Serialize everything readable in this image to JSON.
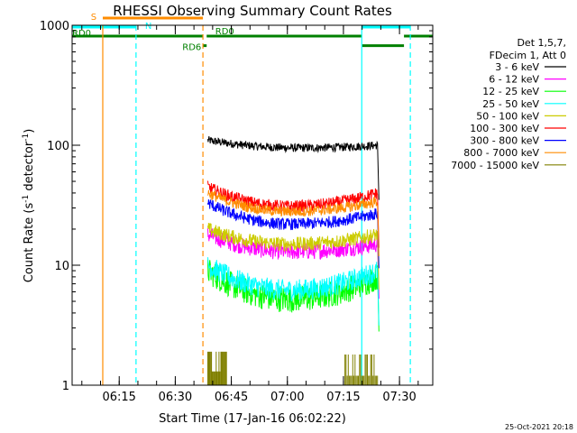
{
  "chart_data": {
    "type": "line",
    "title": "RHESSI Observing Summary Count Rates",
    "xlabel": "Start Time (17-Jan-16 06:02:22)",
    "ylabel_main": "Count Rate (s",
    "ylabel_sup1": "-1",
    "ylabel_mid": " detector",
    "ylabel_sup2": "-1",
    "ylabel_end": ")",
    "y_scale": "log",
    "ylim": [
      1,
      1000
    ],
    "xlim_minutes": [
      0,
      96.5
    ],
    "y_ticks": [
      {
        "value": 1,
        "label": "1"
      },
      {
        "value": 10,
        "label": "10"
      },
      {
        "value": 100,
        "label": "100"
      },
      {
        "value": 1000,
        "label": "1000"
      }
    ],
    "x_ticks": [
      {
        "minute": 12.6,
        "label": "06:15"
      },
      {
        "minute": 27.6,
        "label": "06:30"
      },
      {
        "minute": 42.6,
        "label": "06:45"
      },
      {
        "minute": 57.6,
        "label": "07:00"
      },
      {
        "minute": 72.6,
        "label": "07:15"
      },
      {
        "minute": 87.6,
        "label": "07:30"
      }
    ],
    "legend_header": [
      "Det 1,5,7,",
      "FDecim 1, Att 0"
    ],
    "series": [
      {
        "name": "3 - 6 keV",
        "color": "#000000",
        "start": [
          35,
          110
        ],
        "end": [
          80,
          100
        ],
        "mid": [
          61,
          95
        ],
        "noise": 0.035
      },
      {
        "name": "6 - 12 keV",
        "color": "#ff00ff",
        "start": [
          35,
          18
        ],
        "end": [
          80,
          15
        ],
        "mid": [
          58,
          13
        ],
        "noise": 0.07
      },
      {
        "name": "12 - 25 keV",
        "color": "#00ff00",
        "start": [
          35,
          9
        ],
        "end": [
          80,
          8
        ],
        "mid": [
          58,
          5.2
        ],
        "noise": 0.11
      },
      {
        "name": "25 - 50 keV",
        "color": "#00ffff",
        "start": [
          35,
          10
        ],
        "end": [
          80,
          9
        ],
        "mid": [
          58,
          6.2
        ],
        "noise": 0.09
      },
      {
        "name": "50 - 100 keV",
        "color": "#cccc00",
        "start": [
          35,
          20
        ],
        "end": [
          80,
          18
        ],
        "mid": [
          58,
          15
        ],
        "noise": 0.06
      },
      {
        "name": "100 - 300 keV",
        "color": "#ff0000",
        "start": [
          35,
          45
        ],
        "end": [
          80,
          40
        ],
        "mid": [
          58,
          31
        ],
        "noise": 0.05
      },
      {
        "name": "300 - 800 keV",
        "color": "#0000ff",
        "start": [
          35,
          33
        ],
        "end": [
          80,
          27
        ],
        "mid": [
          58,
          22
        ],
        "noise": 0.05
      },
      {
        "name": "800 - 7000 keV",
        "color": "#ff8c00",
        "start": [
          35,
          40
        ],
        "end": [
          80,
          34
        ],
        "mid": [
          58,
          28
        ],
        "noise": 0.045
      },
      {
        "name": "7000 - 15000 keV",
        "color": "#808000",
        "start": [
          35,
          1.9
        ],
        "end": [
          80,
          1.0
        ],
        "mid": [
          58,
          1.0
        ],
        "noise": 0
      }
    ],
    "data_span_minutes": [
      36.3,
      81.7
    ],
    "vertical_lines": [
      {
        "minute": 8.2,
        "color": "#ff8c00",
        "style": "solid"
      },
      {
        "minute": 17.1,
        "color": "#00ffff",
        "style": "dashed"
      },
      {
        "minute": 35.0,
        "color": "#ff8c00",
        "style": "dashed"
      },
      {
        "minute": 77.5,
        "color": "#00ffff",
        "style": "solid"
      },
      {
        "minute": 90.5,
        "color": "#00ffff",
        "style": "dashed"
      }
    ],
    "flag_bars": [
      {
        "label": "S",
        "color": "#ff8c00",
        "x0": 8.2,
        "x1": 35.0,
        "y": 1.56,
        "label_at": 5.0,
        "label_dy": 2
      },
      {
        "label": "N",
        "color": "#00ffff",
        "x0": 0,
        "x1": 17.1,
        "y": 1.485,
        "label_at": 19.5,
        "label_dy": 2
      },
      {
        "label": "",
        "color": "#00ffff",
        "x0": 77.5,
        "x1": 90.5,
        "y": 1.485,
        "label_at": 0,
        "label_dy": 0
      },
      {
        "label": "RD0",
        "color": "#008000",
        "x0": 0,
        "x1": 35.0,
        "y": 1.41,
        "label_at": 0,
        "label_dy": 0
      },
      {
        "label": "RD0",
        "color": "#008000",
        "x0": 36.0,
        "x1": 77.5,
        "y": 1.41,
        "label_at": 38.3,
        "label_dy": -2
      },
      {
        "label": "",
        "color": "#008000",
        "x0": 88.8,
        "x1": 96.5,
        "y": 1.41,
        "label_at": 0,
        "label_dy": 0
      },
      {
        "label": "RD6",
        "color": "#008000",
        "x0": 35.0,
        "x1": 36.0,
        "y": 1.33,
        "label_at": 29.5,
        "label_dy": 5
      },
      {
        "label": "",
        "color": "#008000",
        "x0": 77.6,
        "x1": 88.8,
        "y": 1.33,
        "label_at": 0,
        "label_dy": 0
      }
    ],
    "footer_date": "25-Oct-2021 20:18"
  }
}
